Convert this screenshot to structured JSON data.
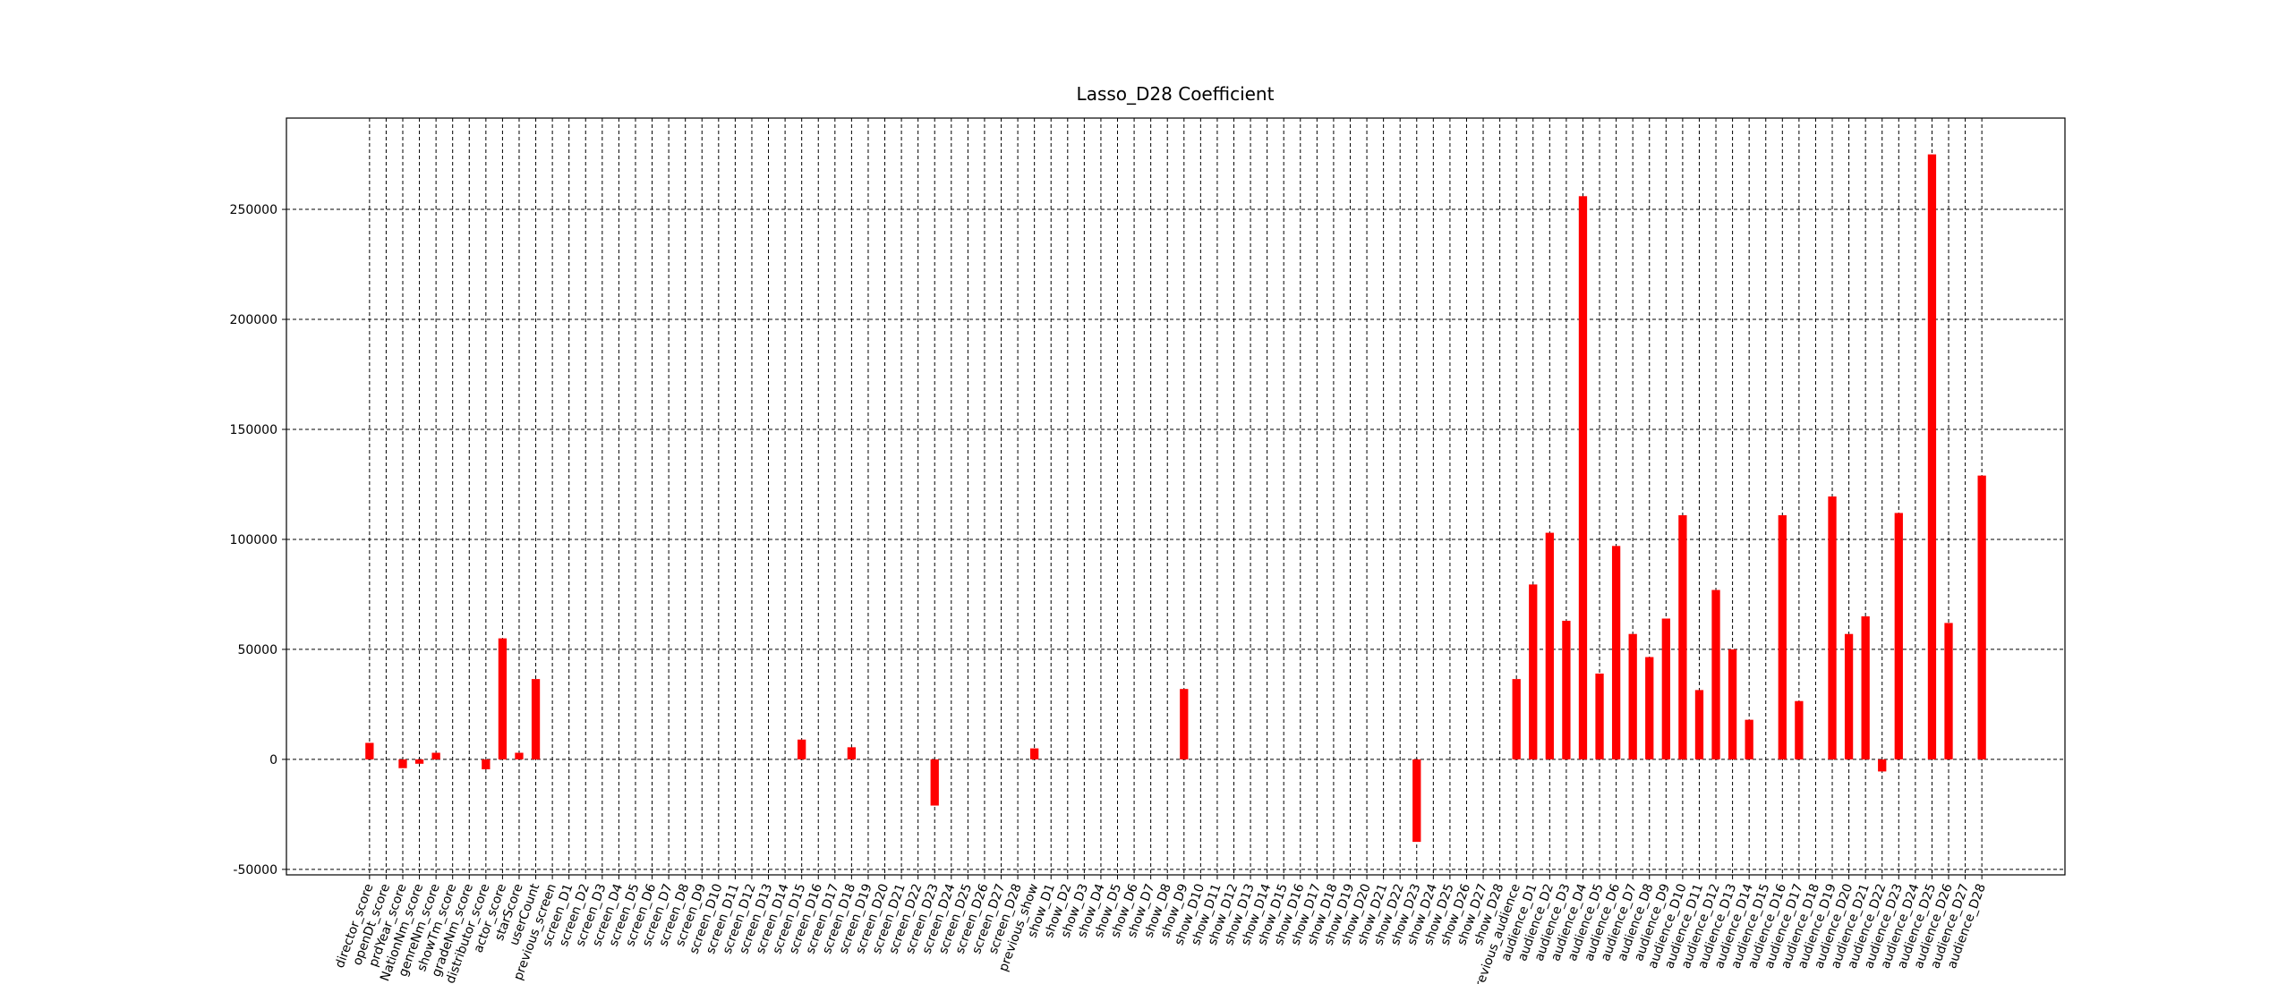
{
  "chart_data": {
    "type": "bar",
    "title": "Lasso_D28 Coefficient",
    "categories": [
      "director_score",
      "openDt_score",
      "prdYear_score",
      "NationNm_score",
      "genreNm_score",
      "showTm_score",
      "gradeNm_score",
      "distributor_score",
      "actor_score",
      "starScore",
      "userCount",
      "previous_screen",
      "screen_D1",
      "screen_D2",
      "screen_D3",
      "screen_D4",
      "screen_D5",
      "screen_D6",
      "screen_D7",
      "screen_D8",
      "screen_D9",
      "screen_D10",
      "screen_D11",
      "screen_D12",
      "screen_D13",
      "screen_D14",
      "screen_D15",
      "screen_D16",
      "screen_D17",
      "screen_D18",
      "screen_D19",
      "screen_D20",
      "screen_D21",
      "screen_D22",
      "screen_D23",
      "screen_D24",
      "screen_D25",
      "screen_D26",
      "screen_D27",
      "screen_D28",
      "previous_show",
      "show_D1",
      "show_D2",
      "show_D3",
      "show_D4",
      "show_D5",
      "show_D6",
      "show_D7",
      "show_D8",
      "show_D9",
      "show_D10",
      "show_D11",
      "show_D12",
      "show_D13",
      "show_D14",
      "show_D15",
      "show_D16",
      "show_D17",
      "show_D18",
      "show_D19",
      "show_D20",
      "show_D21",
      "show_D22",
      "show_D23",
      "show_D24",
      "show_D25",
      "show_D26",
      "show_D27",
      "show_D28",
      "previous_audience",
      "audience_D1",
      "audience_D2",
      "audience_D3",
      "audience_D4",
      "audience_D5",
      "audience_D6",
      "audience_D7",
      "audience_D8",
      "audience_D9",
      "audience_D10",
      "audience_D11",
      "audience_D12",
      "audience_D13",
      "audience_D14",
      "audience_D15",
      "audience_D16",
      "audience_D17",
      "audience_D18",
      "audience_D19",
      "audience_D20",
      "audience_D21",
      "audience_D22",
      "audience_D23",
      "audience_D24",
      "audience_D25",
      "audience_D26",
      "audience_D27",
      "audience_D28"
    ],
    "values": [
      7500,
      0,
      -4000,
      -2000,
      3000,
      0,
      0,
      -4500,
      55000,
      3000,
      36500,
      0,
      0,
      0,
      0,
      0,
      0,
      0,
      0,
      0,
      0,
      0,
      0,
      0,
      0,
      0,
      9000,
      0,
      0,
      5500,
      0,
      0,
      0,
      0,
      -21000,
      0,
      0,
      0,
      0,
      0,
      5000,
      0,
      0,
      0,
      0,
      0,
      0,
      0,
      0,
      32000,
      0,
      0,
      0,
      0,
      0,
      0,
      0,
      0,
      0,
      0,
      0,
      0,
      0,
      -37500,
      0,
      0,
      0,
      0,
      0,
      36500,
      79500,
      103000,
      63000,
      256000,
      39000,
      97000,
      57000,
      46500,
      64000,
      111000,
      31500,
      77000,
      50000,
      18000,
      0,
      111000,
      26500,
      0,
      119500,
      57000,
      65000,
      -5500,
      112000,
      0,
      275000,
      62000,
      0,
      129000
    ],
    "color": "#ff0000",
    "xlim": [
      -5,
      102
    ],
    "ylim": [
      -52500,
      291500
    ],
    "yticks": [
      -50000,
      0,
      50000,
      100000,
      150000,
      200000,
      250000
    ],
    "grid": true
  }
}
